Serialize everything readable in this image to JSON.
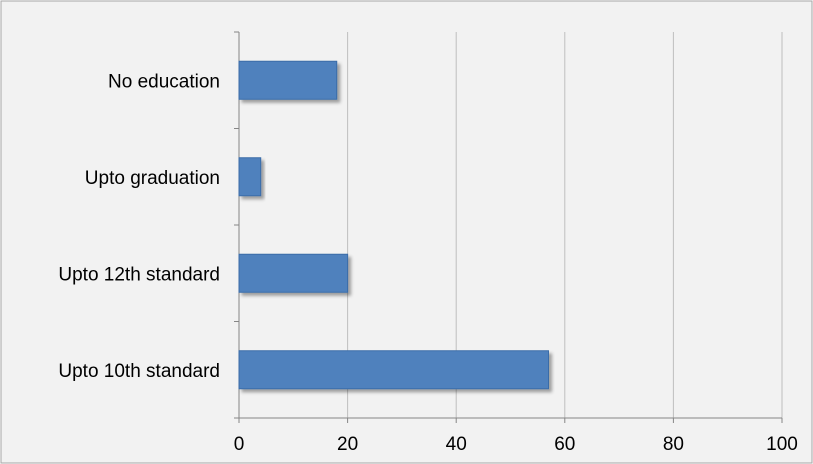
{
  "chart_data": {
    "type": "bar",
    "orientation": "horizontal",
    "title": "",
    "xlabel": "",
    "ylabel": "",
    "categories": [
      "No education",
      "Upto graduation",
      "Upto 12th standard",
      "Upto 10th standard"
    ],
    "values": [
      18,
      4,
      20,
      57
    ],
    "xlim": [
      0,
      100
    ],
    "x_ticks": [
      0,
      20,
      40,
      60,
      80,
      100
    ],
    "grid": "vertical-major",
    "legend": "none",
    "colors": {
      "bar": "#4F81BD",
      "bar_edge": "#3A6CA8",
      "bar_shadow": "#B5B5B5",
      "plot_background": "#F2F2F2",
      "grid": "#BFBFBF",
      "axis": "#868686",
      "frame": "#A6A6A6"
    }
  }
}
